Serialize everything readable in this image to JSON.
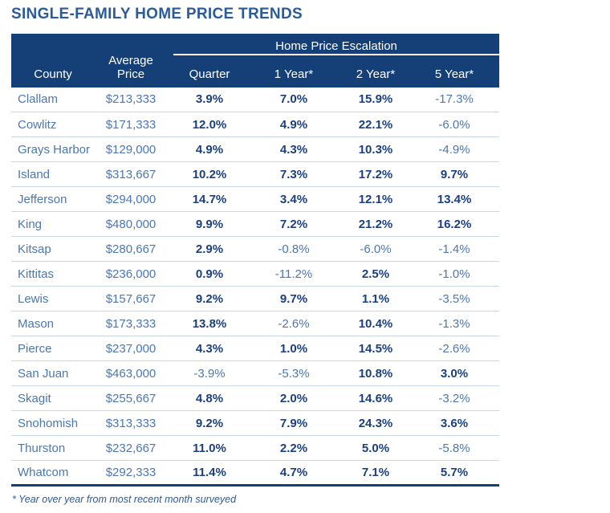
{
  "chart_data": {
    "type": "table",
    "title": "SINGLE-FAMILY HOME PRICE TRENDS",
    "group_header": "Home Price Escalation",
    "columns": [
      "County",
      "Average Price",
      "Quarter",
      "1 Year*",
      "2 Year*",
      "5 Year*"
    ],
    "rows": [
      {
        "county": "Clallam",
        "avg_price": "$213,333",
        "quarter": "3.9%",
        "one_year": "7.0%",
        "two_year": "15.9%",
        "five_year": "-17.3%"
      },
      {
        "county": "Cowlitz",
        "avg_price": "$171,333",
        "quarter": "12.0%",
        "one_year": "4.9%",
        "two_year": "22.1%",
        "five_year": "-6.0%"
      },
      {
        "county": "Grays Harbor",
        "avg_price": "$129,000",
        "quarter": "4.9%",
        "one_year": "4.3%",
        "two_year": "10.3%",
        "five_year": "-4.9%"
      },
      {
        "county": "Island",
        "avg_price": "$313,667",
        "quarter": "10.2%",
        "one_year": "7.3%",
        "two_year": "17.2%",
        "five_year": "9.7%"
      },
      {
        "county": "Jefferson",
        "avg_price": "$294,000",
        "quarter": "14.7%",
        "one_year": "3.4%",
        "two_year": "12.1%",
        "five_year": "13.4%"
      },
      {
        "county": "King",
        "avg_price": "$480,000",
        "quarter": "9.9%",
        "one_year": "7.2%",
        "two_year": "21.2%",
        "five_year": "16.2%"
      },
      {
        "county": "Kitsap",
        "avg_price": "$280,667",
        "quarter": "2.9%",
        "one_year": "-0.8%",
        "two_year": "-6.0%",
        "five_year": "-1.4%"
      },
      {
        "county": "Kittitas",
        "avg_price": "$236,000",
        "quarter": "0.9%",
        "one_year": "-11.2%",
        "two_year": "2.5%",
        "five_year": "-1.0%"
      },
      {
        "county": "Lewis",
        "avg_price": "$157,667",
        "quarter": "9.2%",
        "one_year": "9.7%",
        "two_year": "1.1%",
        "five_year": "-3.5%"
      },
      {
        "county": "Mason",
        "avg_price": "$173,333",
        "quarter": "13.8%",
        "one_year": "-2.6%",
        "two_year": "10.4%",
        "five_year": "-1.3%"
      },
      {
        "county": "Pierce",
        "avg_price": "$237,000",
        "quarter": "4.3%",
        "one_year": "1.0%",
        "two_year": "14.5%",
        "five_year": "-2.6%"
      },
      {
        "county": "San Juan",
        "avg_price": "$463,000",
        "quarter": "-3.9%",
        "one_year": "-5.3%",
        "two_year": "10.8%",
        "five_year": "3.0%"
      },
      {
        "county": "Skagit",
        "avg_price": "$255,667",
        "quarter": "4.8%",
        "one_year": "2.0%",
        "two_year": "14.6%",
        "five_year": "-3.2%"
      },
      {
        "county": "Snohomish",
        "avg_price": "$313,333",
        "quarter": "9.2%",
        "one_year": "7.9%",
        "two_year": "24.3%",
        "five_year": "3.6%"
      },
      {
        "county": "Thurston",
        "avg_price": "$232,667",
        "quarter": "11.0%",
        "one_year": "2.2%",
        "two_year": "5.0%",
        "five_year": "-5.8%"
      },
      {
        "county": "Whatcom",
        "avg_price": "$292,333",
        "quarter": "11.4%",
        "one_year": "4.7%",
        "two_year": "7.1%",
        "five_year": "5.7%"
      }
    ],
    "footnote": "* Year over year from most recent month surveyed",
    "value_style_note": "positive values bold dark navy, negative values regular lighter blue"
  },
  "colors": {
    "header_bg": "#153f77",
    "header_text": "#ffffff",
    "title_text": "#2a5b9b",
    "row_text": "#4b77b3",
    "positive_value": "#1b4080",
    "negative_value": "#4b77b3",
    "row_divider": "#c9d7ea",
    "table_bottom": "#153f77"
  }
}
